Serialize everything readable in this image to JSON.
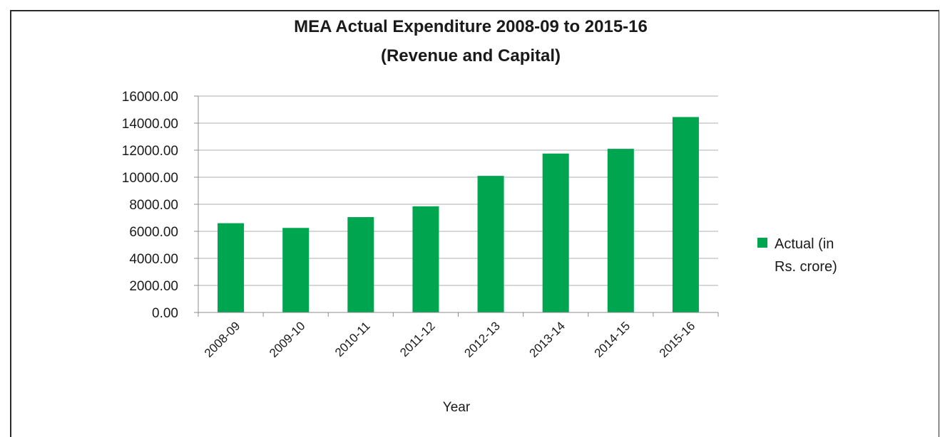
{
  "chart_data": {
    "type": "bar",
    "title_line1": "MEA Actual Expenditure 2008-09 to 2015-16",
    "title_line2": "(Revenue and Capital)",
    "xlabel": "Year",
    "ylabel": "",
    "categories": [
      "2008-09",
      "2009-10",
      "2010-11",
      "2011-12",
      "2012-13",
      "2013-14",
      "2014-15",
      "2015-16"
    ],
    "series": [
      {
        "name": "Actual (in Rs. crore)",
        "legend_lines": [
          "Actual (in",
          "Rs. crore)"
        ],
        "values": [
          6600,
          6250,
          7050,
          7850,
          10100,
          11750,
          12100,
          14450
        ]
      }
    ],
    "ylim": [
      0,
      16000
    ],
    "yticks": [
      "0.00",
      "2000.00",
      "4000.00",
      "6000.00",
      "8000.00",
      "10000.00",
      "12000.00",
      "14000.00",
      "16000.00"
    ],
    "ytick_values": [
      0,
      2000,
      4000,
      6000,
      8000,
      10000,
      12000,
      14000,
      16000
    ],
    "grid": true,
    "legend_position": "right",
    "bar_color": "#00a64f"
  }
}
